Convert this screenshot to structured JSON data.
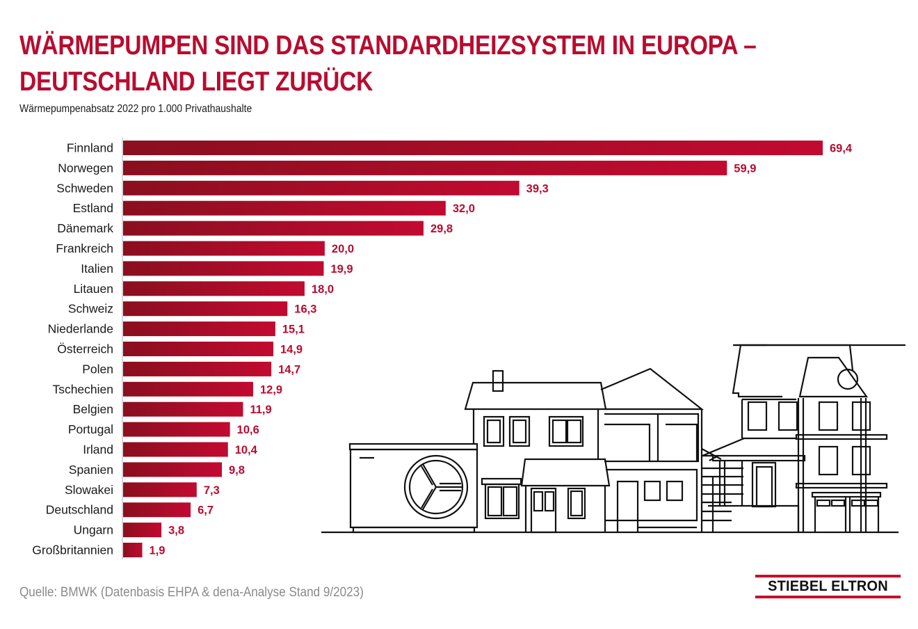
{
  "header": {
    "title_line1": "WÄRMEPUMPEN SIND DAS STANDARDHEIZSYSTEM IN EUROPA –",
    "title_line2": "DEUTSCHLAND LIEGT ZURÜCK",
    "subtitle": "Wärmepumpenabsatz 2022 pro 1.000 Privathaushalte"
  },
  "footer": {
    "source": "Quelle: BMWK (Datenbasis EHPA & dena-Analyse Stand 9/2023)",
    "logo_text": "STIEBEL ELTRON"
  },
  "colors": {
    "title": "#b80c2f",
    "bar_start": "#8a0f1f",
    "bar_end": "#c20a30",
    "value_label": "#b80c2f",
    "logo_rule": "#c8102e",
    "source_text": "#8a8a8a"
  },
  "illustration": {
    "subject": "houses-with-heat-pump-line-drawing"
  },
  "chart_data": {
    "type": "bar",
    "orientation": "horizontal",
    "title": "Wärmepumpen sind das Standardheizsystem in Europa – Deutschland liegt zurück",
    "subtitle": "Wärmepumpenabsatz 2022 pro 1.000 Privathaushalte",
    "xlabel": "",
    "ylabel": "",
    "xlim": [
      0,
      70
    ],
    "grid": false,
    "legend": "none",
    "decimal_separator": ",",
    "categories": [
      "Finnland",
      "Norwegen",
      "Schweden",
      "Estland",
      "Dänemark",
      "Frankreich",
      "Italien",
      "Litauen",
      "Schweiz",
      "Niederlande",
      "Österreich",
      "Polen",
      "Tschechien",
      "Belgien",
      "Portugal",
      "Irland",
      "Spanien",
      "Slowakei",
      "Deutschland",
      "Ungarn",
      "Großbritannien"
    ],
    "values": [
      69.4,
      59.9,
      39.3,
      32.0,
      29.8,
      20.0,
      19.9,
      18.0,
      16.3,
      15.1,
      14.9,
      14.7,
      12.9,
      11.9,
      10.6,
      10.4,
      9.8,
      7.3,
      6.7,
      3.8,
      1.9
    ],
    "value_labels": [
      "69,4",
      "59,9",
      "39,3",
      "32,0",
      "29,8",
      "20,0",
      "19,9",
      "18,0",
      "16,3",
      "15,1",
      "14,9",
      "14,7",
      "12,9",
      "11,9",
      "10,6",
      "10,4",
      "9,8",
      "7,3",
      "6,7",
      "3,8",
      "1,9"
    ]
  }
}
